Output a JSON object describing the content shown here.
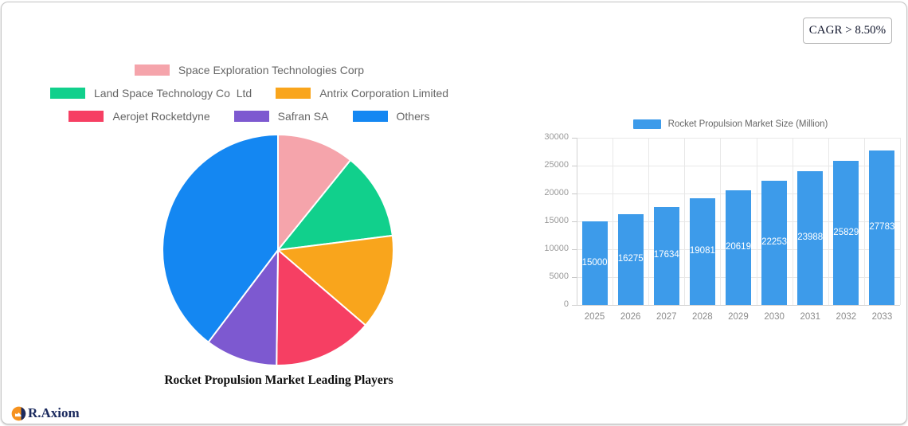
{
  "card": {
    "cagr_badge_label": "CAGR > 8.50%"
  },
  "branding": {
    "logo_text": "R.Axiom",
    "logo_icon": "growth-chart-icon",
    "logo_text_color": "#1b2a5e",
    "logo_icon_orange": "#f6921e",
    "logo_icon_navy": "#1b2a5e"
  },
  "chart_data": [
    {
      "id": "market-leading-players-pie",
      "type": "pie",
      "title": "Rocket Propulsion Market Leading Players",
      "labels": [
        "Space Exploration Technologies Corp",
        "Land Space Technology Co  Ltd",
        "Antrix Corporation Limited",
        "Aerojet Rocketdyne",
        "Safran SA",
        "Others"
      ],
      "values_pct": [
        10.8,
        12.2,
        13.3,
        13.9,
        10.1,
        39.7
      ],
      "colors": [
        "#f5a4ab",
        "#11d08c",
        "#f9a51c",
        "#f63f63",
        "#7d59d0",
        "#1487f2"
      ],
      "slice_border_color": "#ffffff",
      "start_angle_deg": 0,
      "direction": "clockwise",
      "legend_position": "top",
      "legend_rows": [
        [
          0
        ],
        [
          1,
          2
        ],
        [
          3,
          4,
          5
        ]
      ]
    },
    {
      "id": "market-size-bar",
      "type": "bar",
      "legend_label": "Rocket Propulsion Market Size (Million)",
      "categories": [
        "2025",
        "2026",
        "2027",
        "2028",
        "2029",
        "2030",
        "2031",
        "2032",
        "2033"
      ],
      "values": [
        15000,
        16275,
        17634,
        19081,
        20619,
        22253,
        23988,
        25829,
        27783
      ],
      "bar_color": "#3d9bea",
      "value_label_color": "#ffffff",
      "value_label_position": "inside-middle",
      "axis_label_color": "#999999",
      "ylim": [
        0,
        30000
      ],
      "yticks": [
        0,
        5000,
        10000,
        15000,
        20000,
        25000,
        30000
      ],
      "grid": true,
      "legend_position": "top"
    }
  ]
}
